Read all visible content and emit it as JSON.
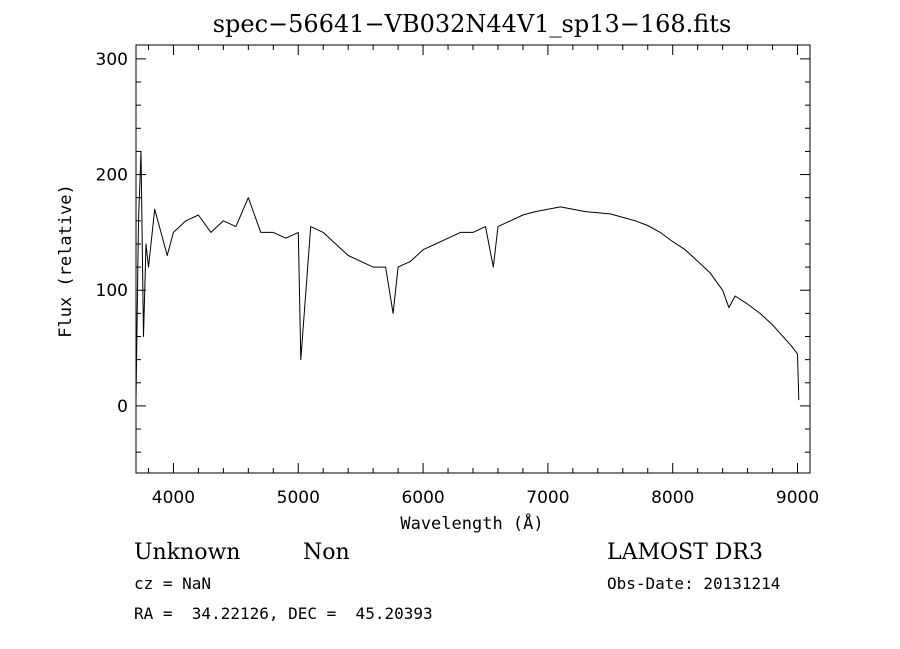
{
  "chart_data": {
    "type": "line",
    "title": "spec−56641−VB032N44V1_sp13−168.fits",
    "xlabel": "Wavelength (Å)",
    "ylabel": "Flux (relative)",
    "xlim": [
      3700,
      9100
    ],
    "ylim": [
      -58,
      312
    ],
    "xticks": [
      4000,
      5000,
      6000,
      7000,
      8000,
      9000
    ],
    "yticks": [
      0,
      100,
      200,
      300
    ],
    "grid": false,
    "line_color": "#000000",
    "series": [
      {
        "x": [
          3700,
          3720,
          3740,
          3760,
          3780,
          3800,
          3850,
          3900,
          3950,
          4000,
          4100,
          4200,
          4300,
          4400,
          4500,
          4600,
          4700,
          4800,
          4900,
          5000,
          5020,
          5100,
          5200,
          5300,
          5400,
          5500,
          5600,
          5700,
          5760,
          5800,
          5900,
          6000,
          6100,
          6200,
          6300,
          6400,
          6500,
          6563,
          6600,
          6700,
          6800,
          6900,
          7000,
          7100,
          7200,
          7300,
          7400,
          7500,
          7600,
          7700,
          7800,
          7900,
          8000,
          8100,
          8200,
          8300,
          8400,
          8450,
          8500,
          8600,
          8700,
          8800,
          8900,
          8950,
          9000,
          9010
        ],
        "y": [
          5,
          160,
          220,
          60,
          140,
          120,
          170,
          150,
          130,
          150,
          160,
          165,
          150,
          160,
          155,
          180,
          150,
          150,
          145,
          150,
          40,
          155,
          150,
          140,
          130,
          125,
          120,
          120,
          80,
          120,
          125,
          135,
          140,
          145,
          150,
          150,
          155,
          120,
          155,
          160,
          165,
          168,
          170,
          172,
          170,
          168,
          167,
          166,
          163,
          160,
          156,
          150,
          142,
          135,
          125,
          115,
          100,
          85,
          95,
          88,
          80,
          70,
          58,
          52,
          45,
          5
        ]
      }
    ]
  },
  "info": {
    "class_line_1": "Unknown",
    "class_line_2": "Non",
    "cz": "cz = NaN",
    "coords": "RA =  34.22126, DEC =  45.20393",
    "survey": "LAMOST DR3",
    "obs_date": "Obs-Date: 20131214"
  }
}
